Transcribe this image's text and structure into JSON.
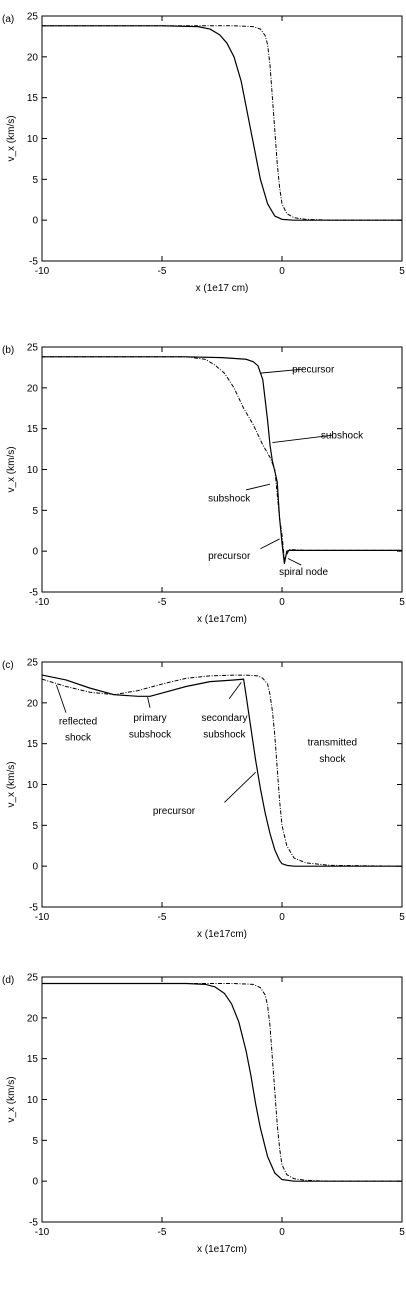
{
  "chart_data": [
    {
      "type": "line",
      "panel_label": "(a)",
      "xlabel": "x (1e17 cm)",
      "ylabel": "v_x (km/s)",
      "xlim": [
        -10,
        5
      ],
      "ylim": [
        -5,
        25
      ],
      "x_ticks": [
        -10,
        -5,
        0,
        5
      ],
      "y_ticks": [
        -5,
        0,
        5,
        10,
        15,
        20,
        25
      ],
      "grid": false,
      "series": [
        {
          "style": "solid",
          "x": [
            -10,
            -5,
            -3.5,
            -3,
            -2.6,
            -2.3,
            -2,
            -1.7,
            -1.5,
            -1.3,
            -1.1,
            -0.9,
            -0.6,
            -0.3,
            0,
            0.5,
            1,
            5
          ],
          "y": [
            23.8,
            23.8,
            23.7,
            23.4,
            22.7,
            21.7,
            20,
            17,
            14,
            11,
            8,
            5,
            2,
            0.5,
            0.1,
            0,
            0,
            0
          ]
        },
        {
          "style": "dashed",
          "x": [
            -10,
            -2,
            -1.2,
            -0.9,
            -0.7,
            -0.6,
            -0.5,
            -0.4,
            -0.3,
            -0.2,
            -0.1,
            0,
            0.2,
            0.5,
            1,
            2,
            5
          ],
          "y": [
            23.8,
            23.8,
            23.7,
            23.4,
            22.6,
            21.5,
            19,
            15,
            11,
            7,
            4,
            2,
            0.8,
            0.3,
            0.1,
            0,
            0
          ]
        }
      ],
      "annotations": []
    },
    {
      "type": "line",
      "panel_label": "(b)",
      "xlabel": "x (1e17cm)",
      "ylabel": "v_x (km/s)",
      "xlim": [
        -10,
        5
      ],
      "ylim": [
        -5,
        25
      ],
      "x_ticks": [
        -10,
        -5,
        0,
        5
      ],
      "y_ticks": [
        -5,
        0,
        5,
        10,
        15,
        20,
        25
      ],
      "grid": false,
      "series": [
        {
          "style": "solid",
          "x": [
            -10,
            -4,
            -2.5,
            -1.5,
            -1.2,
            -1,
            -0.8,
            -0.6,
            -0.5,
            -0.4,
            -0.3,
            -0.2,
            -0.1,
            0,
            0.1,
            0.2,
            0.3,
            1,
            5
          ],
          "y": [
            23.8,
            23.8,
            23.7,
            23.5,
            23.2,
            22.7,
            21,
            16,
            13,
            11,
            9.8,
            8.5,
            4,
            1,
            -1.5,
            0,
            0.1,
            0.1,
            0.1
          ]
        },
        {
          "style": "dashed",
          "x": [
            -10,
            -4,
            -3.2,
            -2.8,
            -2.4,
            -2,
            -1.6,
            -1.2,
            -0.8,
            -0.5,
            -0.3,
            -0.2,
            -0.1,
            0,
            0.1,
            0.3,
            1,
            5
          ],
          "y": [
            23.8,
            23.8,
            23.5,
            22.8,
            21.8,
            20,
            17.5,
            15.5,
            13,
            11.5,
            10,
            7,
            4,
            2,
            -1,
            0.2,
            0.1,
            0.1
          ]
        }
      ],
      "annotations": [
        {
          "text": "precursor",
          "x": 1.3,
          "y": 22.3,
          "tx": 0.9,
          "ty": 22.3,
          "px": -0.9,
          "py": 21.8
        },
        {
          "text": "subshock",
          "x": 2.5,
          "y": 14.2,
          "tx": 2.1,
          "ty": 14.2,
          "px": -0.4,
          "py": 13.3
        },
        {
          "text": "subshock",
          "x": -2.2,
          "y": 6.5,
          "tx": -1.5,
          "ty": 7.5,
          "px": -0.5,
          "py": 8.2
        },
        {
          "text": "precursor",
          "x": -2.2,
          "y": -0.5,
          "tx": -0.9,
          "ty": 0.3,
          "px": -0.1,
          "py": 1.5
        },
        {
          "text": "spiral node",
          "x": 0.9,
          "y": -2.5,
          "tx": 0.8,
          "ty": -1.7,
          "px": 0.25,
          "py": -0.9
        }
      ]
    },
    {
      "type": "line",
      "panel_label": "(c)",
      "xlabel": "x (1e17cm)",
      "ylabel": "v_x (km/s)",
      "xlim": [
        -10,
        5
      ],
      "ylim": [
        -5,
        25
      ],
      "x_ticks": [
        -10,
        -5,
        0,
        5
      ],
      "y_ticks": [
        -5,
        0,
        5,
        10,
        15,
        20,
        25
      ],
      "grid": false,
      "series": [
        {
          "style": "solid",
          "x": [
            -10,
            -9,
            -8,
            -7,
            -6,
            -5.5,
            -5,
            -4,
            -3,
            -2,
            -1.6,
            -1.5,
            -1.3,
            -1.1,
            -0.9,
            -0.7,
            -0.5,
            -0.3,
            -0.1,
            0,
            0.2,
            0.5,
            1,
            5
          ],
          "y": [
            23.4,
            22.8,
            21.8,
            21,
            20.8,
            20.8,
            21.2,
            22,
            22.6,
            22.8,
            22.9,
            21,
            17,
            13,
            9.5,
            6.5,
            4,
            2,
            0.7,
            0.3,
            0.1,
            0,
            0,
            0
          ]
        },
        {
          "style": "dashed",
          "x": [
            -10,
            -9,
            -8,
            -7,
            -6,
            -5,
            -4,
            -3,
            -2,
            -1.5,
            -1,
            -0.8,
            -0.6,
            -0.5,
            -0.4,
            -0.3,
            -0.2,
            -0.1,
            0,
            0.2,
            0.5,
            1,
            2,
            5
          ],
          "y": [
            22.9,
            22,
            21.3,
            21,
            21.5,
            22.3,
            23,
            23.3,
            23.4,
            23.4,
            23.3,
            23,
            22.3,
            21,
            19,
            16,
            12,
            8,
            5,
            2.5,
            1,
            0.4,
            0.1,
            0
          ]
        }
      ],
      "annotations": [
        {
          "text": "reflected",
          "x": -8.5,
          "y": 17.8,
          "tx": -9,
          "ty": 18.8,
          "px": -9.4,
          "py": 22.2
        },
        {
          "text": "shock",
          "x": -8.5,
          "y": 15.8
        },
        {
          "text": "primary",
          "x": -5.5,
          "y": 18.2,
          "tx": -5.5,
          "ty": 19.4,
          "px": -5.6,
          "py": 20.7
        },
        {
          "text": "subshock",
          "x": -5.5,
          "y": 16.2
        },
        {
          "text": "secondary",
          "x": -2.4,
          "y": 18.2,
          "tx": -2.2,
          "ty": 20.5,
          "px": -1.7,
          "py": 22.5
        },
        {
          "text": "subshock",
          "x": -2.4,
          "y": 16.2
        },
        {
          "text": "transmitted",
          "x": 2.1,
          "y": 15.2
        },
        {
          "text": "shock",
          "x": 2.1,
          "y": 13.2
        },
        {
          "text": "precursor",
          "x": -4.5,
          "y": 6.8,
          "tx": -2.4,
          "ty": 7.8,
          "px": -1.1,
          "py": 11.5
        }
      ]
    },
    {
      "type": "line",
      "panel_label": "(d)",
      "xlabel": "x (1e17cm)",
      "ylabel": "v_x (km/s)",
      "xlim": [
        -10,
        5
      ],
      "ylim": [
        -5,
        25
      ],
      "x_ticks": [
        -10,
        -5,
        0,
        5
      ],
      "y_ticks": [
        -5,
        0,
        5,
        10,
        15,
        20,
        25
      ],
      "grid": false,
      "series": [
        {
          "style": "solid",
          "x": [
            -10,
            -4,
            -3.2,
            -2.8,
            -2.4,
            -2.1,
            -1.8,
            -1.5,
            -1.3,
            -1.1,
            -0.9,
            -0.6,
            -0.3,
            0,
            0.5,
            1,
            5
          ],
          "y": [
            24.2,
            24.2,
            24.1,
            23.8,
            23,
            21.7,
            19.5,
            16,
            13,
            9.5,
            6.5,
            3,
            1,
            0.2,
            0,
            0,
            0
          ]
        },
        {
          "style": "dashed",
          "x": [
            -10,
            -2,
            -1.2,
            -0.9,
            -0.7,
            -0.6,
            -0.5,
            -0.4,
            -0.3,
            -0.2,
            -0.1,
            0,
            0.2,
            0.5,
            1,
            2,
            5
          ],
          "y": [
            24.2,
            24.2,
            24.1,
            23.7,
            22.8,
            21.5,
            19,
            15,
            11,
            7,
            4,
            2,
            0.8,
            0.3,
            0.1,
            0,
            0
          ]
        }
      ],
      "annotations": []
    }
  ]
}
